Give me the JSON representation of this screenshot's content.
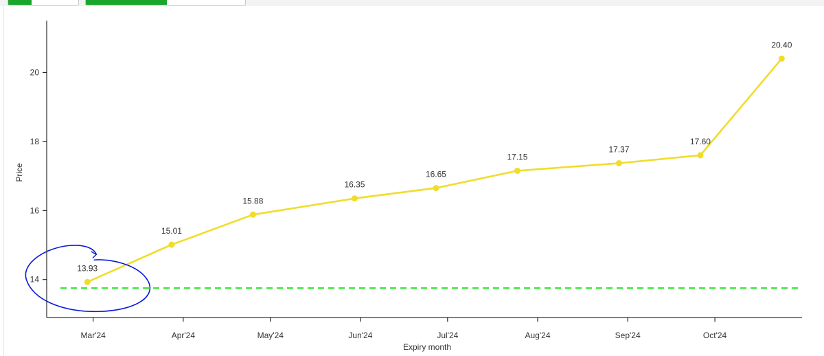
{
  "toolbar": {
    "tab_groups": [
      {
        "name": "tab-group-1"
      },
      {
        "name": "tab-group-2"
      }
    ]
  },
  "colors": {
    "series_line": "#f0dd2a",
    "reference_line": "#3ee93e",
    "annotation": "#0a1bd6",
    "axis": "#000000",
    "tab_active": "#1aa62d"
  },
  "chart_data": {
    "type": "line",
    "xlabel": "Expiry month",
    "ylabel": "Price",
    "x_ticks": [
      "Mar'24",
      "Apr'24",
      "May'24",
      "Jun'24",
      "Jul'24",
      "Aug'24",
      "Sep'24",
      "Oct'24"
    ],
    "x_range": [
      "2024-02-14",
      "2024-10-31"
    ],
    "y_ticks": [
      14,
      16,
      18,
      20
    ],
    "ylim": [
      12.9,
      21.5
    ],
    "grid": false,
    "legend": "none",
    "series": [
      {
        "x": [
          "2024-02-28",
          "2024-03-28",
          "2024-04-25",
          "2024-05-30",
          "2024-06-27",
          "2024-07-25",
          "2024-08-29",
          "2024-09-26",
          "2024-10-24"
        ],
        "values": [
          13.93,
          15.01,
          15.88,
          16.35,
          16.65,
          17.15,
          17.37,
          17.6,
          20.4
        ],
        "labels": [
          "13.93",
          "15.01",
          "15.88",
          "16.35",
          "16.65",
          "17.15",
          "17.37",
          "17.60",
          "20.40"
        ],
        "style": "solid-with-markers"
      }
    ],
    "reference_lines": [
      {
        "y": 13.75,
        "style": "dashed"
      }
    ],
    "annotations": [
      {
        "type": "hand-drawn-circle",
        "around_point": "13.93"
      }
    ]
  }
}
